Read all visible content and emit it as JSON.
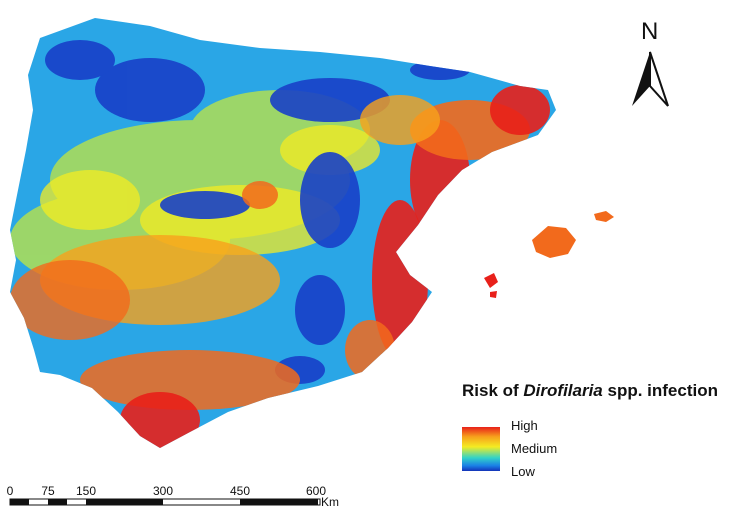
{
  "map": {
    "north_label": "N",
    "colors": {
      "sea": "#ffffff",
      "high": "#e8201a",
      "medium": "#f4ec22",
      "low": "#1433b8"
    }
  },
  "legend": {
    "title_prefix": "Risk of ",
    "title_italic": "Dirofilaria",
    "title_suffix": " spp. infection",
    "high_label": "High",
    "medium_label": "Medium",
    "low_label": "Low"
  },
  "scale_bar": {
    "ticks": [
      "0",
      "75",
      "150",
      "300",
      "450",
      "600"
    ],
    "unit": "Km"
  }
}
